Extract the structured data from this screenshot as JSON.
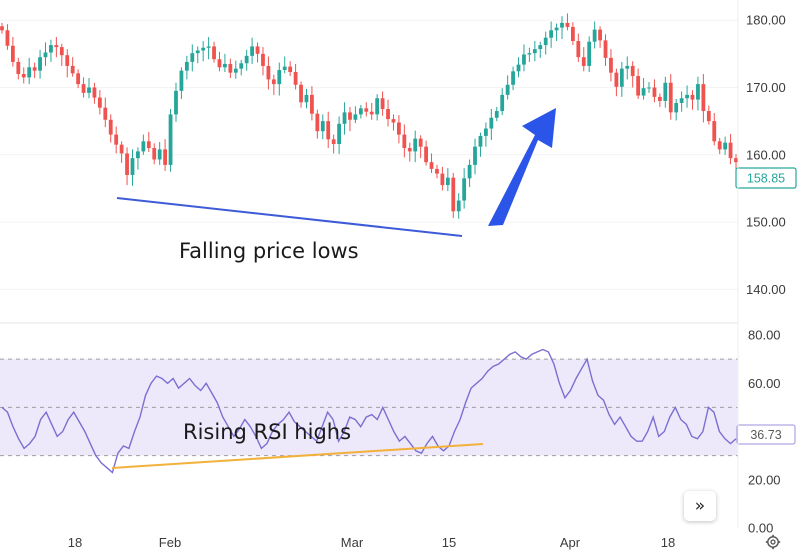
{
  "chart_data": [
    {
      "type": "candlestick",
      "title": "",
      "ylim": [
        135,
        183
      ],
      "y_ticks": [
        "180.00",
        "170.00",
        "160.00",
        "150.00",
        "140.00"
      ],
      "last_price_label": "158.85",
      "colors": {
        "up": "#26a69a",
        "down": "#ef5350",
        "last_badge": "#26a69a",
        "trendline": "#3d5bd9",
        "arrow": "#2a55e8"
      },
      "closes": [
        178.5,
        176.2,
        173.8,
        172.0,
        171.5,
        173.0,
        172.5,
        174.5,
        175.2,
        176.3,
        176.0,
        174.8,
        173.2,
        172.1,
        170.5,
        169.2,
        170.0,
        168.5,
        167.0,
        165.2,
        163.0,
        161.5,
        160.2,
        157.0,
        159.5,
        160.5,
        162.0,
        161.0,
        159.3,
        160.8,
        158.5,
        166.0,
        169.5,
        172.5,
        173.8,
        175.1,
        175.5,
        175.9,
        176.1,
        174.2,
        173.0,
        173.5,
        172.2,
        172.8,
        173.6,
        174.7,
        176.1,
        175.0,
        173.2,
        171.2,
        170.5,
        172.6,
        173.1,
        172.3,
        170.4,
        167.8,
        168.9,
        166.1,
        163.5,
        165.0,
        162.3,
        161.6,
        164.6,
        166.3,
        165.2,
        166.0,
        166.9,
        166.4,
        166.0,
        168.4,
        166.8,
        165.3,
        164.8,
        163.0,
        161.0,
        160.5,
        162.4,
        161.2,
        158.9,
        157.9,
        157.2,
        155.5,
        156.6,
        151.6,
        153.2,
        156.5,
        158.5,
        161.2,
        162.8,
        163.9,
        165.5,
        166.5,
        168.9,
        170.4,
        172.4,
        173.4,
        174.9,
        175.1,
        175.7,
        176.3,
        177.4,
        178.5,
        178.9,
        179.6,
        179.0,
        176.9,
        174.5,
        173.2,
        176.8,
        178.6,
        177.0,
        174.4,
        172.2,
        170.1,
        172.8,
        173.2,
        171.7,
        168.8,
        169.9,
        170.0,
        168.6,
        168.0,
        170.7,
        166.3,
        167.7,
        168.4,
        168.9,
        168.2,
        170.5,
        166.5,
        165.0,
        162.0,
        160.8,
        161.8,
        159.5,
        158.9
      ],
      "date_labels": [
        "18",
        "Feb",
        "Mar",
        "15",
        "Apr",
        "18"
      ],
      "annotations": [
        "Falling price lows"
      ]
    },
    {
      "type": "line",
      "name": "RSI",
      "ylim": [
        0,
        85
      ],
      "y_ticks": [
        "80.00",
        "60.00",
        "40.00",
        "20.00",
        "0.00"
      ],
      "levels": [
        70,
        50,
        30
      ],
      "last_value_label": "36.73",
      "colors": {
        "line": "#7b6fd0",
        "band": "#ede9fb",
        "trendline": "#f2b13a"
      },
      "values": [
        50,
        48,
        42,
        37,
        33,
        35,
        38,
        45,
        48,
        43,
        38,
        40,
        45,
        48,
        44,
        40,
        35,
        30,
        27,
        25,
        23,
        31,
        34,
        33,
        40,
        46,
        55,
        60,
        63,
        62,
        60,
        62,
        58,
        60,
        62,
        59,
        57,
        60,
        56,
        52,
        46,
        42,
        38,
        41,
        45,
        42,
        38,
        33,
        35,
        40,
        43,
        45,
        48,
        44,
        42,
        40,
        38,
        36,
        42,
        48,
        45,
        36,
        40,
        46,
        45,
        42,
        46,
        47,
        45,
        50,
        45,
        40,
        36,
        38,
        35,
        32,
        31,
        35,
        38,
        34,
        32,
        34,
        40,
        45,
        52,
        58,
        60,
        62,
        65,
        67,
        68,
        70,
        72,
        73,
        71,
        70,
        72,
        73,
        74,
        73,
        68,
        60,
        54,
        57,
        62,
        66,
        70,
        61,
        55,
        53,
        47,
        43,
        46,
        42,
        38,
        36,
        36,
        40,
        46,
        38,
        40,
        46,
        50,
        45,
        43,
        38,
        37,
        40,
        50,
        48,
        40,
        37,
        35,
        37
      ]
    }
  ],
  "time_axis": {
    "labels": [
      "18",
      "Feb",
      "Mar",
      "15",
      "Apr",
      "18"
    ]
  },
  "annotations": {
    "price": "Falling price lows",
    "rsi": "Rising RSI highs"
  },
  "controls": {
    "scroll_to_latest": "»",
    "settings_icon": "gear-icon"
  }
}
